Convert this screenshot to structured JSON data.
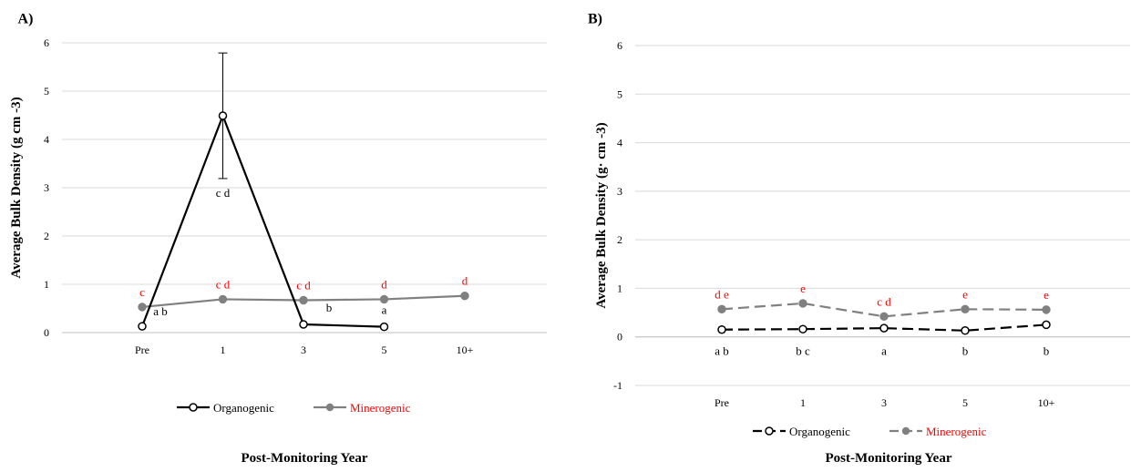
{
  "chart_data": [
    {
      "type": "line",
      "panel_label": "A)",
      "ylabel": "Average Bulk Density (g cm -3)",
      "xlabel": "Post-Monitoring Year",
      "categories": [
        "Pre",
        "1",
        "3",
        "5",
        "10+"
      ],
      "ylim": [
        0,
        6
      ],
      "yticks": [
        0,
        1,
        2,
        3,
        4,
        5,
        6
      ],
      "grid": true,
      "legend_position": "bottom",
      "series": [
        {
          "name": "Organogenic",
          "color": "#000000",
          "dashed": false,
          "marker": "open-circle",
          "values": [
            0.13,
            4.49,
            0.17,
            0.12,
            null
          ],
          "error": [
            null,
            1.3,
            null,
            null,
            null
          ],
          "labels": [
            "a b",
            "c d",
            "b",
            "a",
            ""
          ]
        },
        {
          "name": "Minerogenic",
          "color": "#808080",
          "label_color": "#ff0000",
          "dashed": false,
          "marker": "filled-circle",
          "values": [
            0.53,
            0.69,
            0.67,
            0.69,
            0.76
          ],
          "labels": [
            "c",
            "c d",
            "c d",
            "d",
            "d"
          ]
        }
      ]
    },
    {
      "type": "line",
      "panel_label": "B)",
      "ylabel": "Average Bulk Density (g· cm -3)",
      "xlabel": "Post-Monitoring Year",
      "categories": [
        "Pre",
        "1",
        "3",
        "5",
        "10+"
      ],
      "ylim": [
        -1,
        6
      ],
      "yticks": [
        -1,
        0,
        1,
        2,
        3,
        4,
        5,
        6
      ],
      "grid": true,
      "legend_position": "bottom",
      "series": [
        {
          "name": "Organogenic",
          "color": "#000000",
          "dashed": true,
          "marker": "open-circle",
          "values": [
            0.15,
            0.16,
            0.18,
            0.13,
            0.25
          ],
          "labels": [
            "a b",
            "b c",
            "a",
            "b",
            "b"
          ]
        },
        {
          "name": "Minerogenic",
          "color": "#808080",
          "label_color": "#ff0000",
          "dashed": true,
          "marker": "filled-circle",
          "values": [
            0.57,
            0.69,
            0.42,
            0.57,
            0.56
          ],
          "labels": [
            "d e",
            "e",
            "c d",
            "e",
            "e"
          ]
        }
      ]
    }
  ]
}
